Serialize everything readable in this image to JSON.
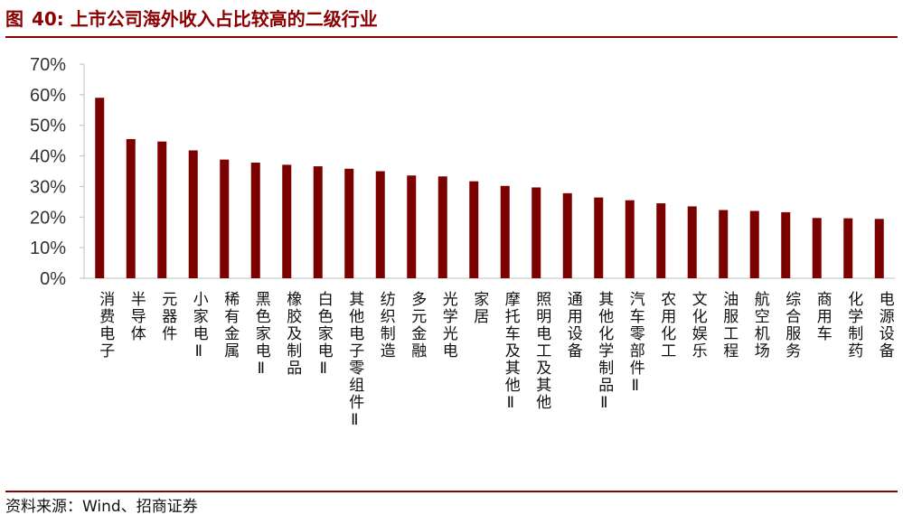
{
  "figure": {
    "prefix": "图",
    "number": "40:",
    "title": "上市公司海外收入占比较高的二级行业",
    "source": "资料来源：Wind、招商证券"
  },
  "colors": {
    "bar": "#7b0000",
    "rule": "#8b0000",
    "axis": "#bfbfbf"
  },
  "chart_data": {
    "type": "bar",
    "title": "",
    "xlabel": "",
    "ylabel": "",
    "ylim": [
      0,
      70
    ],
    "yticks": [
      0,
      10,
      20,
      30,
      40,
      50,
      60,
      70
    ],
    "ytick_labels": [
      "0%",
      "10%",
      "20%",
      "30%",
      "40%",
      "50%",
      "60%",
      "70%"
    ],
    "grid": false,
    "categories": [
      "消费电子",
      "半导体",
      "元器件",
      "小家电Ⅱ",
      "稀有金属",
      "黑色家电Ⅱ",
      "橡胶及制品",
      "白色家电Ⅱ",
      "其他电子零组件Ⅱ",
      "纺织制造",
      "多元金融",
      "光学光电",
      "家居",
      "摩托车及其他Ⅱ",
      "照明电工及其他",
      "通用设备",
      "其他化学制品Ⅱ",
      "汽车零部件Ⅱ",
      "农用化工",
      "文化娱乐",
      "油服工程",
      "航空机场",
      "综合服务",
      "商用车",
      "化学制药",
      "电源设备"
    ],
    "values": [
      59.0,
      45.5,
      44.7,
      41.8,
      38.8,
      37.8,
      37.1,
      36.6,
      35.8,
      35.0,
      33.6,
      33.3,
      31.7,
      30.2,
      29.7,
      27.8,
      26.4,
      25.5,
      24.5,
      23.5,
      22.3,
      22.0,
      21.6,
      19.7,
      19.6,
      19.4
    ]
  }
}
